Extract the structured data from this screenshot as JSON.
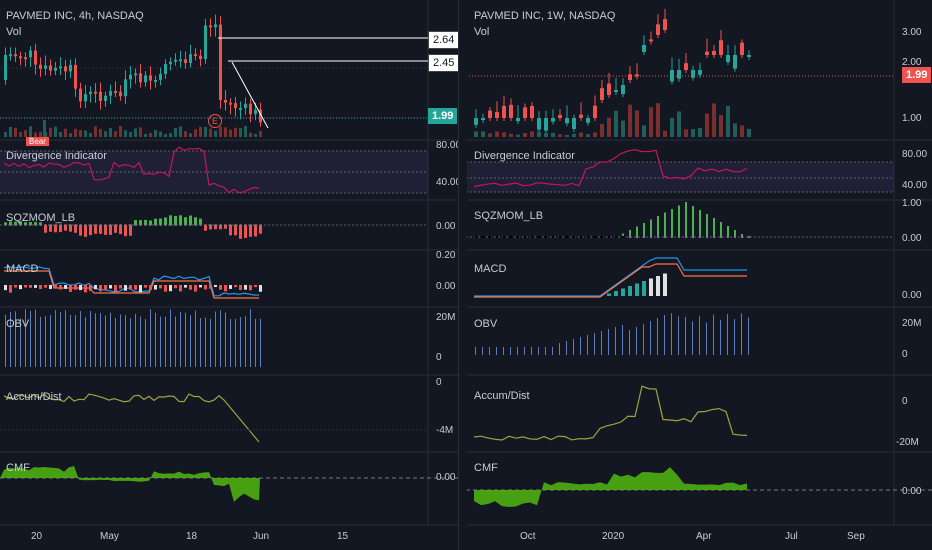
{
  "left": {
    "title": "PAVMED INC, 4h, NASDAQ",
    "vol_label": "Vol",
    "tags": {
      "hi": "2.64",
      "mid": "2.45",
      "price": "1.99"
    },
    "bear_label": "Bear",
    "earnings_label": "E",
    "panes": [
      "Divergence Indicator",
      "SQZMOM_LB",
      "MACD",
      "OBV",
      "Accum/Dist",
      "CMF"
    ],
    "axis": {
      "div": [
        "80.00",
        "40.00"
      ],
      "sqz": [
        "0.00"
      ],
      "macd": [
        "0.20",
        "0.00"
      ],
      "obv": [
        "20M",
        "0"
      ],
      "ad": [
        "0",
        "-4M"
      ],
      "cmf": [
        "0.00"
      ]
    },
    "time_labels": [
      "20",
      "May",
      "18",
      "Jun",
      "15"
    ]
  },
  "right": {
    "title": "PAVMED INC, 1W, NASDAQ",
    "vol_label": "Vol",
    "price_axis": [
      "3.00",
      "2.00",
      "1.00"
    ],
    "price_tag": "1.99",
    "panes": [
      "Divergence Indicator",
      "SQZMOM_LB",
      "MACD",
      "OBV",
      "Accum/Dist",
      "CMF"
    ],
    "axis": {
      "div": [
        "80.00",
        "40.00"
      ],
      "sqz": [
        "1.00",
        "0.00"
      ],
      "macd": [
        "0.00"
      ],
      "obv": [
        "20M",
        "0"
      ],
      "ad": [
        "0",
        "-20M"
      ],
      "cmf": [
        "0.00"
      ]
    },
    "time_labels": [
      "Oct",
      "2020",
      "Apr",
      "Jul",
      "Sep"
    ]
  },
  "colors": {
    "up": "#26a69a",
    "down": "#ef5350",
    "div_line": "#c2185b",
    "sqz_up": "#4caf50",
    "macd": "#2196f3",
    "signal": "#ff7043",
    "obv": "#5b7fbf",
    "ad": "#9ea43c",
    "cmf": "#4caf10",
    "bg": "#131722"
  }
}
